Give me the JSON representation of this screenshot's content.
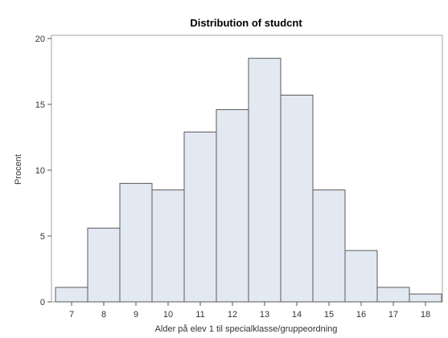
{
  "chart_data": {
    "type": "bar",
    "title": "Distribution of studcnt",
    "xlabel": "Alder på elev 1 til specialklasse/gruppeordning",
    "ylabel": "Procent",
    "categories": [
      "7",
      "8",
      "9",
      "10",
      "11",
      "12",
      "13",
      "14",
      "15",
      "16",
      "17",
      "18"
    ],
    "values": [
      1.1,
      5.6,
      9.0,
      8.5,
      12.9,
      14.6,
      18.5,
      15.7,
      8.5,
      3.9,
      1.1,
      0.6
    ],
    "ylim": [
      0,
      20
    ],
    "yticks": [
      "0",
      "5",
      "10",
      "15",
      "20"
    ],
    "grid": false,
    "legend": "none",
    "colors": {
      "bar_fill": "#e3e9f2",
      "bar_stroke": "#5a5a5a",
      "frame": "#a0a0a0",
      "text": "#333333"
    }
  }
}
